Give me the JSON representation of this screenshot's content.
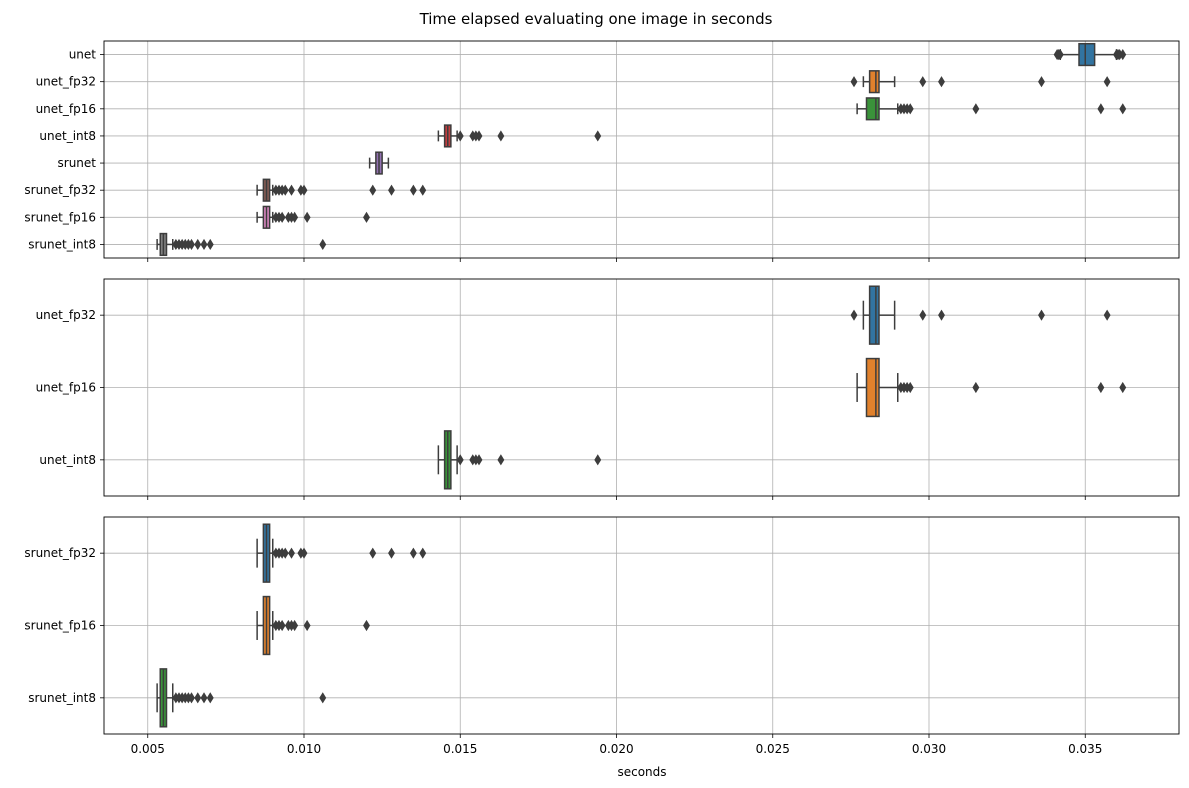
{
  "chart_data": {
    "type": "boxplot",
    "orientation": "horizontal",
    "title": "Time elapsed evaluating one image in seconds",
    "xlabel": "seconds",
    "xlim": [
      0.0036,
      0.038
    ],
    "x_ticks": [
      0.005,
      0.01,
      0.015,
      0.02,
      0.025,
      0.03,
      0.035
    ],
    "x_tick_labels": [
      "0.005",
      "0.010",
      "0.015",
      "0.020",
      "0.025",
      "0.030",
      "0.035"
    ],
    "grid": true,
    "shared_x": true,
    "colors": [
      "#3274a1",
      "#e1812c",
      "#3a923a",
      "#c03d3e",
      "#9372b2",
      "#845b53",
      "#d684bd",
      "#7f7f7f"
    ],
    "panels": [
      {
        "boxes": [
          {
            "label": "unet",
            "q1": 0.0348,
            "median": 0.035,
            "q3": 0.0353,
            "whisker_low": 0.0342,
            "whisker_high": 0.036,
            "outliers": [
              0.0341,
              0.03415,
              0.0342,
              0.036,
              0.03605,
              0.0361,
              0.0362
            ]
          },
          {
            "label": "unet_fp32",
            "q1": 0.0281,
            "median": 0.0283,
            "q3": 0.0284,
            "whisker_low": 0.0279,
            "whisker_high": 0.0289,
            "outliers": [
              0.0276,
              0.0298,
              0.0304,
              0.0336,
              0.0357
            ]
          },
          {
            "label": "unet_fp16",
            "q1": 0.028,
            "median": 0.0283,
            "q3": 0.0284,
            "whisker_low": 0.0277,
            "whisker_high": 0.029,
            "outliers": [
              0.0291,
              0.0292,
              0.0293,
              0.0294,
              0.0315,
              0.0355,
              0.0362
            ]
          },
          {
            "label": "unet_int8",
            "q1": 0.0145,
            "median": 0.0146,
            "q3": 0.0147,
            "whisker_low": 0.0143,
            "whisker_high": 0.0149,
            "outliers": [
              0.015,
              0.0154,
              0.0155,
              0.0156,
              0.0163,
              0.0194
            ]
          },
          {
            "label": "srunet",
            "q1": 0.0123,
            "median": 0.0124,
            "q3": 0.0125,
            "whisker_low": 0.0121,
            "whisker_high": 0.0127,
            "outliers": []
          },
          {
            "label": "srunet_fp32",
            "q1": 0.0087,
            "median": 0.0088,
            "q3": 0.0089,
            "whisker_low": 0.0085,
            "whisker_high": 0.009,
            "outliers": [
              0.0091,
              0.0092,
              0.0093,
              0.0094,
              0.0096,
              0.0099,
              0.01,
              0.0122,
              0.0128,
              0.0135,
              0.0138
            ]
          },
          {
            "label": "srunet_fp16",
            "q1": 0.0087,
            "median": 0.0088,
            "q3": 0.0089,
            "whisker_low": 0.0085,
            "whisker_high": 0.009,
            "outliers": [
              0.0091,
              0.0092,
              0.0093,
              0.0095,
              0.0096,
              0.0097,
              0.0101,
              0.012
            ]
          },
          {
            "label": "srunet_int8",
            "q1": 0.0054,
            "median": 0.0055,
            "q3": 0.0056,
            "whisker_low": 0.0053,
            "whisker_high": 0.0058,
            "outliers": [
              0.0059,
              0.006,
              0.0061,
              0.0062,
              0.0063,
              0.0064,
              0.0066,
              0.0068,
              0.007,
              0.0106
            ]
          }
        ]
      },
      {
        "boxes": [
          {
            "label": "unet_fp32",
            "q1": 0.0281,
            "median": 0.0283,
            "q3": 0.0284,
            "whisker_low": 0.0279,
            "whisker_high": 0.0289,
            "outliers": [
              0.0276,
              0.0298,
              0.0304,
              0.0336,
              0.0357
            ]
          },
          {
            "label": "unet_fp16",
            "q1": 0.028,
            "median": 0.0283,
            "q3": 0.0284,
            "whisker_low": 0.0277,
            "whisker_high": 0.029,
            "outliers": [
              0.0291,
              0.0292,
              0.0293,
              0.0294,
              0.0315,
              0.0355,
              0.0362
            ]
          },
          {
            "label": "unet_int8",
            "q1": 0.0145,
            "median": 0.0146,
            "q3": 0.0147,
            "whisker_low": 0.0143,
            "whisker_high": 0.0149,
            "outliers": [
              0.015,
              0.0154,
              0.0155,
              0.0156,
              0.0163,
              0.0194
            ]
          }
        ]
      },
      {
        "boxes": [
          {
            "label": "srunet_fp32",
            "q1": 0.0087,
            "median": 0.0088,
            "q3": 0.0089,
            "whisker_low": 0.0085,
            "whisker_high": 0.009,
            "outliers": [
              0.0091,
              0.0092,
              0.0093,
              0.0094,
              0.0096,
              0.0099,
              0.01,
              0.0122,
              0.0128,
              0.0135,
              0.0138
            ]
          },
          {
            "label": "srunet_fp16",
            "q1": 0.0087,
            "median": 0.0088,
            "q3": 0.0089,
            "whisker_low": 0.0085,
            "whisker_high": 0.009,
            "outliers": [
              0.0091,
              0.0092,
              0.0093,
              0.0095,
              0.0096,
              0.0097,
              0.0101,
              0.012
            ]
          },
          {
            "label": "srunet_int8",
            "q1": 0.0054,
            "median": 0.0055,
            "q3": 0.0056,
            "whisker_low": 0.0053,
            "whisker_high": 0.0058,
            "outliers": [
              0.0059,
              0.006,
              0.0061,
              0.0062,
              0.0063,
              0.0064,
              0.0066,
              0.0068,
              0.007,
              0.0106
            ]
          }
        ]
      }
    ]
  }
}
